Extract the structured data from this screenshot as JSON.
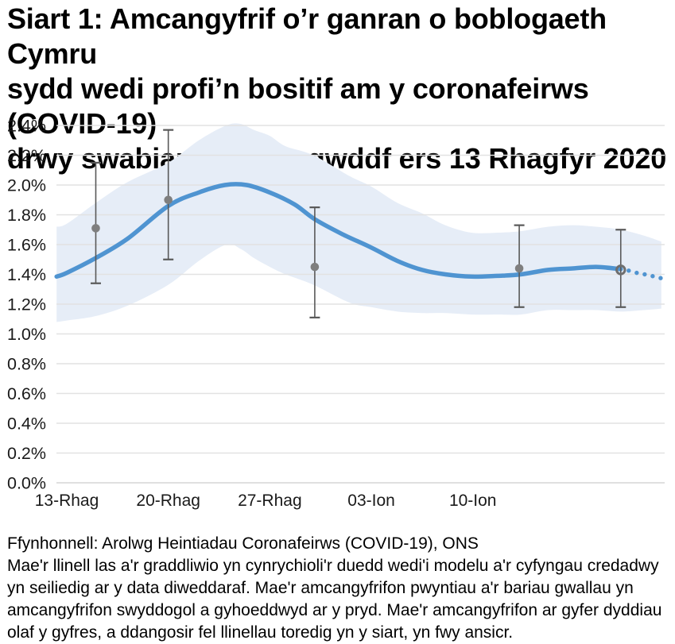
{
  "page": {
    "background": "#ffffff"
  },
  "chart_data": {
    "type": "line",
    "title": "Siart 1: Amcangyfrif o’r ganran o boblogaeth Cymru\nsydd wedi profi’n bositif am y coronafeirws (COVID-19)\ndrwy swabiau trwyn a gwddf ers 13 Rhagfyr 2020",
    "source": "Ffynhonnell: Arolwg Heintiadau Coronafeirws (COVID-19), ONS",
    "note": "Mae'r llinell las a'r graddliwio yn cynrychioli'r duedd wedi'i modelu a'r cyfyngau credadwy\nyn seiliedig ar y data diweddaraf. Mae'r amcangyfrifon pwyntiau a'r bariau gwallau yn\namcangyfrifon swyddogol a gyhoeddwyd ar y pryd. Mae'r amcangyfrifon ar gyfer dyddiau\nolaf y gyfres, a ddangosir fel llinellau toredig yn y siart, yn fwy ansicr.",
    "x_axis": {
      "unit": "dyddiau ers 13 Rhagfyr 2020",
      "range_days": [
        -0.7,
        41.2
      ],
      "ticks": [
        {
          "label": "13-Rhag",
          "day": 0
        },
        {
          "label": "20-Rhag",
          "day": 7
        },
        {
          "label": "27-Rhag",
          "day": 14
        },
        {
          "label": "03-Ion",
          "day": 21
        },
        {
          "label": "10-Ion",
          "day": 28
        }
      ]
    },
    "y_axis": {
      "unit": "%",
      "min": 0.0,
      "max": 2.4,
      "gridlines": true,
      "ticks": [
        {
          "label": "0.0%",
          "value": 0.0
        },
        {
          "label": "0.2%",
          "value": 0.2
        },
        {
          "label": "0.4%",
          "value": 0.4
        },
        {
          "label": "0.6%",
          "value": 0.6
        },
        {
          "label": "0.8%",
          "value": 0.8
        },
        {
          "label": "1.0%",
          "value": 1.0
        },
        {
          "label": "1.2%",
          "value": 1.2
        },
        {
          "label": "1.4%",
          "value": 1.4
        },
        {
          "label": "1.6%",
          "value": 1.6
        },
        {
          "label": "1.8%",
          "value": 1.8
        },
        {
          "label": "2.0%",
          "value": 2.0
        },
        {
          "label": "2.2%",
          "value": 2.2
        },
        {
          "label": "2.4%",
          "value": 2.4
        }
      ]
    },
    "trend": {
      "x": [
        -0.7,
        0,
        2,
        4.2,
        7,
        9.1,
        10.9,
        12.4,
        14,
        15.7,
        17.1,
        19,
        21,
        22.8,
        24.5,
        26.1,
        27.9,
        29.7,
        31.3,
        33.2,
        34.9,
        36.5,
        38.2
      ],
      "y": [
        1.385,
        1.41,
        1.51,
        1.64,
        1.86,
        1.95,
        2.0,
        2.0,
        1.95,
        1.87,
        1.77,
        1.67,
        1.58,
        1.49,
        1.43,
        1.4,
        1.385,
        1.39,
        1.4,
        1.43,
        1.44,
        1.45,
        1.435
      ]
    },
    "trend_forecast_dots": {
      "x": [
        38.75,
        39.3,
        39.85,
        40.4,
        40.95
      ],
      "y": [
        1.425,
        1.41,
        1.4,
        1.388,
        1.375
      ]
    },
    "confidence_band": {
      "x": [
        -0.7,
        0,
        2,
        4.2,
        7,
        9.1,
        11,
        12,
        12.9,
        14,
        15.1,
        17,
        19.5,
        21,
        22.8,
        24.5,
        26.1,
        27.9,
        29.7,
        31.3,
        33.2,
        34.9,
        36.5,
        38.2,
        39.8,
        41
      ],
      "upper": [
        1.72,
        1.74,
        1.88,
        2.02,
        2.15,
        2.3,
        2.4,
        2.41,
        2.37,
        2.33,
        2.26,
        2.2,
        2.06,
        1.99,
        1.88,
        1.81,
        1.73,
        1.68,
        1.68,
        1.69,
        1.72,
        1.73,
        1.72,
        1.7,
        1.66,
        1.62
      ],
      "lower": [
        1.08,
        1.09,
        1.12,
        1.19,
        1.33,
        1.49,
        1.6,
        1.57,
        1.51,
        1.45,
        1.4,
        1.33,
        1.21,
        1.18,
        1.15,
        1.14,
        1.14,
        1.13,
        1.13,
        1.13,
        1.16,
        1.16,
        1.16,
        1.15,
        1.16,
        1.17
      ]
    },
    "point_estimates": [
      {
        "day": 2,
        "value": 1.71,
        "lower": 1.34,
        "upper": 2.15,
        "marker": "filled"
      },
      {
        "day": 7,
        "value": 1.9,
        "lower": 1.5,
        "upper": 2.37,
        "marker": "filled"
      },
      {
        "day": 17.1,
        "value": 1.45,
        "lower": 1.11,
        "upper": 1.85,
        "marker": "filled"
      },
      {
        "day": 31.2,
        "value": 1.44,
        "lower": 1.18,
        "upper": 1.73,
        "marker": "filled"
      },
      {
        "day": 38.2,
        "value": 1.43,
        "lower": 1.18,
        "upper": 1.7,
        "marker": "ring"
      }
    ],
    "colors": {
      "trend_blue": "#4f94d1",
      "band_blue": "#e6edf7",
      "grid": "#e2e2e2",
      "axis_line": "#d6d6d6",
      "error_bar": "#595959",
      "point_gray": "#7f7f7f",
      "ring_stroke": "#6e6e6e",
      "text": "#000000"
    }
  }
}
